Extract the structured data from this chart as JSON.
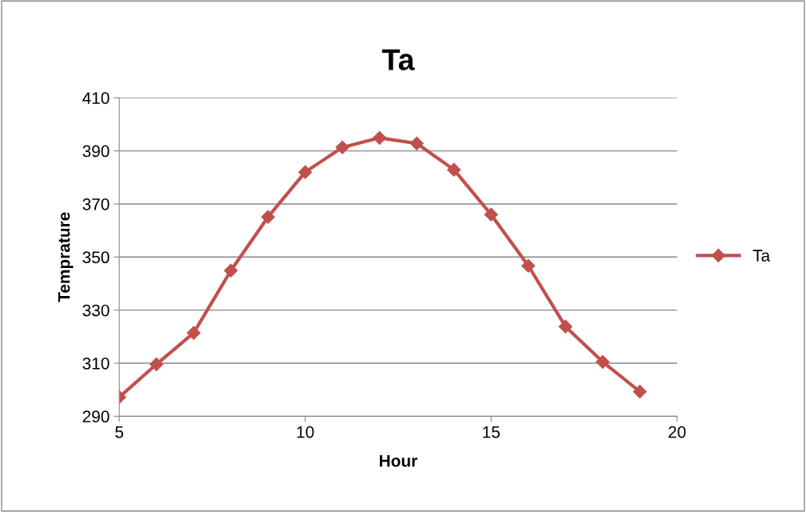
{
  "chart_data": {
    "type": "line",
    "title": "Ta",
    "xlabel": "Hour",
    "ylabel": "Temprature",
    "x": [
      5,
      6,
      7,
      8,
      9,
      10,
      11,
      12,
      13,
      14,
      15,
      16,
      17,
      18,
      19
    ],
    "series": [
      {
        "name": "Ta",
        "color": "#c0504d",
        "values": [
          297.2,
          309.6,
          321.4,
          344.9,
          365.1,
          382,
          391.3,
          394.9,
          392.8,
          382.9,
          366,
          346.7,
          323.8,
          310.5,
          299.3
        ]
      }
    ],
    "xlim": [
      5,
      20
    ],
    "xticks": [
      5,
      10,
      15,
      20
    ],
    "ylim": [
      290,
      410
    ],
    "yticks": [
      290,
      310,
      330,
      350,
      370,
      390,
      410
    ],
    "grid": "y",
    "legend": "right",
    "marker": "diamond",
    "line_style": "solid"
  }
}
